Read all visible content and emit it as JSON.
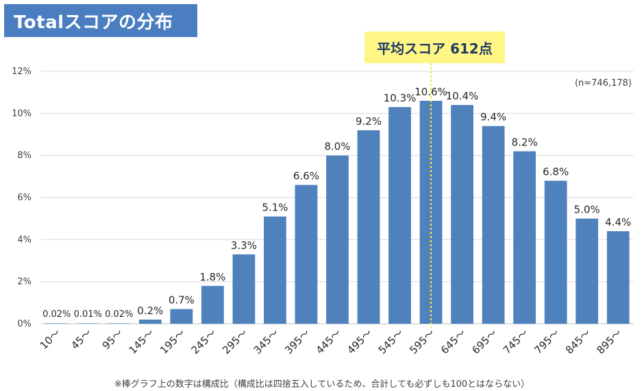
{
  "title": "Totalスコアの分布",
  "average_label": "平均スコア 612点",
  "sample_size": "(n=746,178)",
  "footnote": "※棒グラフ上の数字は構成比（構成比は四捨五入しているため、合計しても必ずしも100とはならない）",
  "colors": {
    "bar": "#4f81bd",
    "title_bg": "#4a7ec0",
    "avg_bg": "#fff685",
    "avg_line": "#f2e640",
    "grid": "#d9d9d9"
  },
  "chart_data": {
    "type": "bar",
    "categories": [
      "10～",
      "45～",
      "95～",
      "145～",
      "195～",
      "245～",
      "295～",
      "345～",
      "395～",
      "445～",
      "495～",
      "545～",
      "595～",
      "645～",
      "695～",
      "745～",
      "795～",
      "845～",
      "895～"
    ],
    "values": [
      0.02,
      0.01,
      0.02,
      0.2,
      0.7,
      1.8,
      3.3,
      5.1,
      6.6,
      8.0,
      9.2,
      10.3,
      10.6,
      10.4,
      9.4,
      8.2,
      6.8,
      5.0,
      4.4
    ],
    "data_labels": [
      "0.02%",
      "0.01%",
      "0.02%",
      "0.2%",
      "0.7%",
      "1.8%",
      "3.3%",
      "5.1%",
      "6.6%",
      "8.0%",
      "9.2%",
      "10.3%",
      "10.6%",
      "10.4%",
      "9.4%",
      "8.2%",
      "6.8%",
      "5.0%",
      "4.4%"
    ],
    "y_ticks": [
      "0%",
      "2%",
      "4%",
      "6%",
      "8%",
      "10%",
      "12%"
    ],
    "ylim": [
      0,
      12
    ],
    "average_score": 612,
    "average_marker_category": "595～",
    "grid": true
  }
}
